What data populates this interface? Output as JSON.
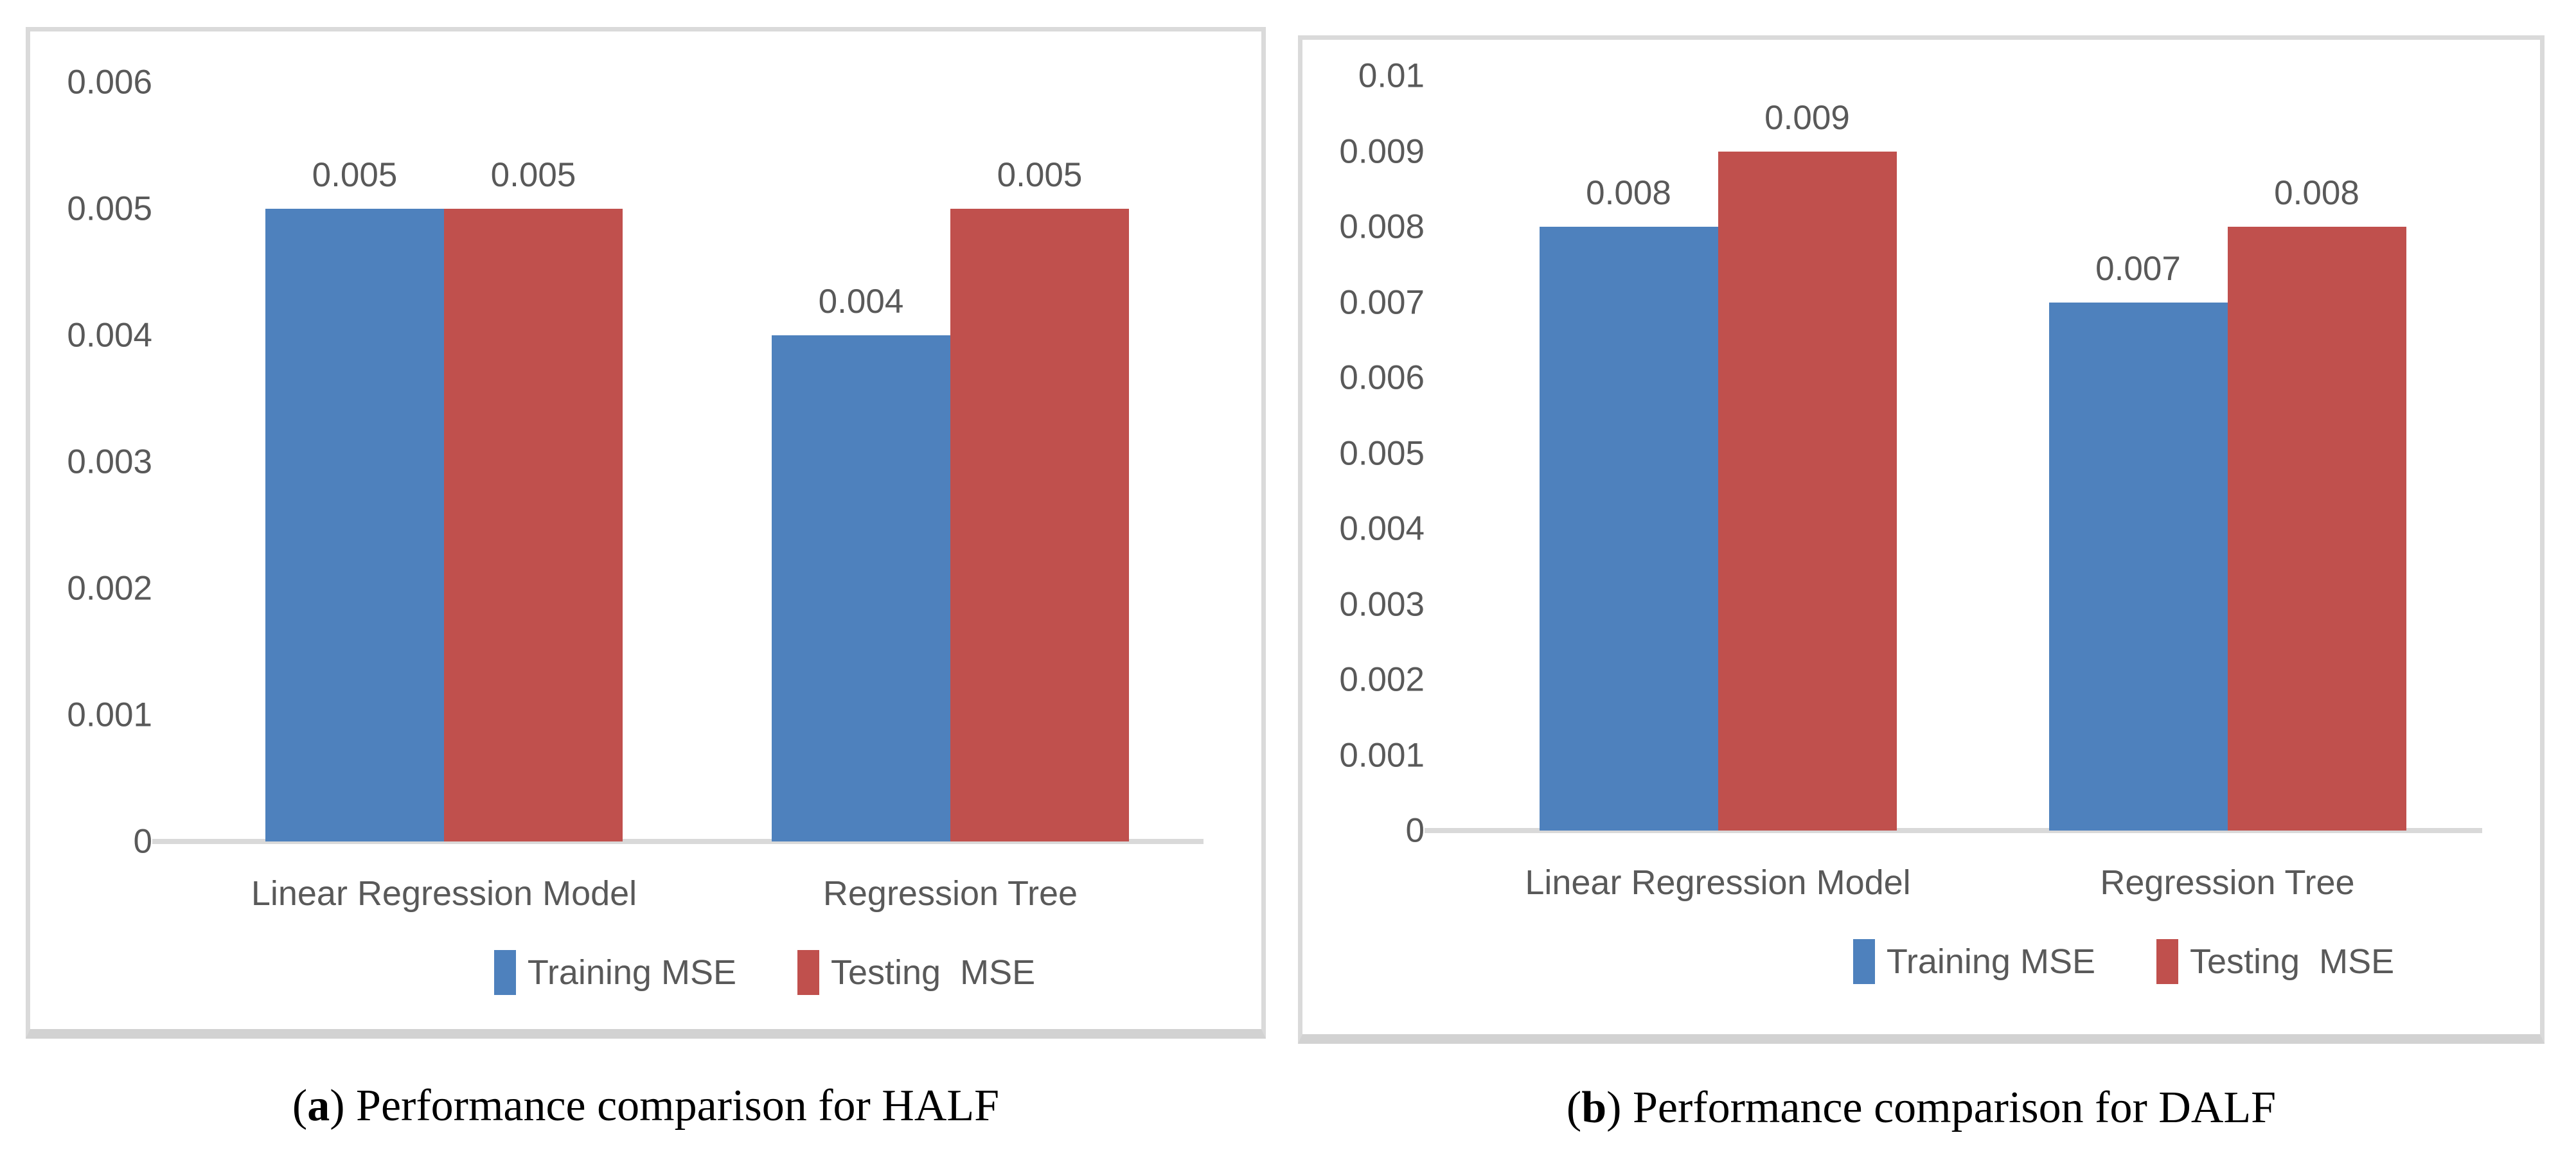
{
  "figures": [
    {
      "caption": {
        "open": "(",
        "letter": "a",
        "close": ") ",
        "text": "Performance comparison for HALF"
      }
    },
    {
      "caption": {
        "open": "(",
        "letter": "b",
        "close": ") ",
        "text": "Performance comparison for DALF"
      }
    }
  ],
  "colors": {
    "training_blue": "#4E81BD",
    "testing_red": "#C0504D",
    "chart_text_gray": "#595959",
    "axis_line_gray": "#D9D9D9",
    "chart_border_gray": "#DADADA"
  },
  "chart_data": [
    {
      "type": "bar",
      "title": "",
      "xlabel": "",
      "ylabel": "",
      "categories": [
        "Linear Regression Model",
        "Regression Tree"
      ],
      "series": [
        {
          "name": "Training MSE",
          "color": "#4E81BD",
          "values": [
            0.005,
            0.004
          ],
          "labels": [
            "0.005",
            "0.004"
          ]
        },
        {
          "name": "Testing  MSE",
          "color": "#C0504D",
          "values": [
            0.005,
            0.005
          ],
          "labels": [
            "0.005",
            "0.005"
          ]
        }
      ],
      "ylim": [
        0,
        0.006
      ],
      "grid": false,
      "legend_position": "bottom",
      "yticks": [
        {
          "value": 0.006,
          "label": "0.006"
        },
        {
          "value": 0.005,
          "label": "0.005"
        },
        {
          "value": 0.004,
          "label": "0.004"
        },
        {
          "value": 0.003,
          "label": "0.003"
        },
        {
          "value": 0.002,
          "label": "0.002"
        },
        {
          "value": 0.001,
          "label": "0.001"
        },
        {
          "value": 0,
          "label": "0"
        }
      ]
    },
    {
      "type": "bar",
      "title": "",
      "xlabel": "",
      "ylabel": "",
      "categories": [
        "Linear Regression Model",
        "Regression Tree"
      ],
      "series": [
        {
          "name": "Training MSE",
          "color": "#4E81BD",
          "values": [
            0.008,
            0.007
          ],
          "labels": [
            "0.008",
            "0.007"
          ]
        },
        {
          "name": "Testing  MSE",
          "color": "#C0504D",
          "values": [
            0.009,
            0.008
          ],
          "labels": [
            "0.009",
            "0.008"
          ]
        }
      ],
      "ylim": [
        0,
        0.01
      ],
      "grid": false,
      "legend_position": "bottom",
      "yticks": [
        {
          "value": 0.01,
          "label": "0.01"
        },
        {
          "value": 0.009,
          "label": "0.009"
        },
        {
          "value": 0.008,
          "label": "0.008"
        },
        {
          "value": 0.007,
          "label": "0.007"
        },
        {
          "value": 0.006,
          "label": "0.006"
        },
        {
          "value": 0.005,
          "label": "0.005"
        },
        {
          "value": 0.004,
          "label": "0.004"
        },
        {
          "value": 0.003,
          "label": "0.003"
        },
        {
          "value": 0.002,
          "label": "0.002"
        },
        {
          "value": 0.001,
          "label": "0.001"
        },
        {
          "value": 0,
          "label": "0"
        }
      ]
    }
  ]
}
